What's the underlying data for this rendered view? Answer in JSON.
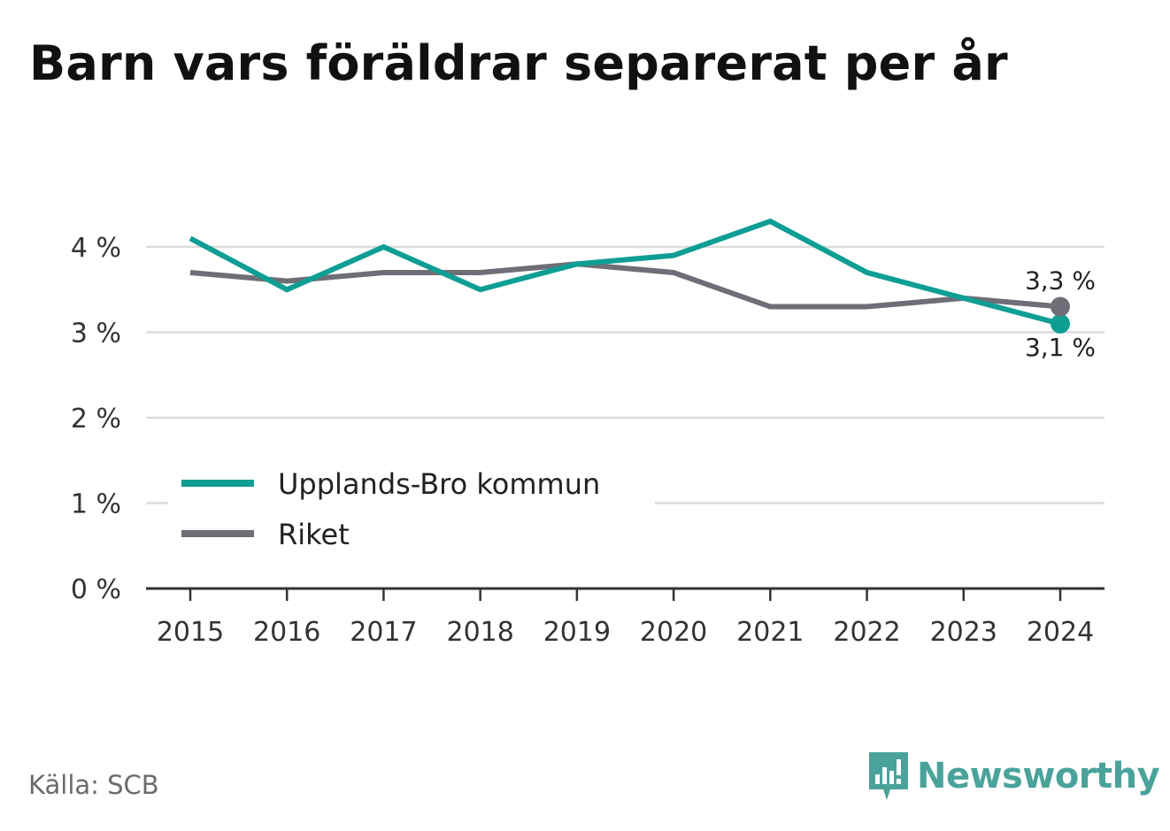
{
  "title": "Barn vars föräldrar separerat per år",
  "source": "Källa: SCB",
  "brand": {
    "name": "Newsworthy",
    "icon": "newsworthy-logo-icon",
    "color": "#4aa39a"
  },
  "chart_data": {
    "type": "line",
    "x": [
      "2015",
      "2016",
      "2017",
      "2018",
      "2019",
      "2020",
      "2021",
      "2022",
      "2023",
      "2024"
    ],
    "yticks": [
      "0 %",
      "1 %",
      "2 %",
      "3 %",
      "4 %"
    ],
    "ylim": [
      0,
      4.5
    ],
    "grid": true,
    "legend_position": "bottom-left",
    "series": [
      {
        "name": "Upplands-Bro kommun",
        "color": "#0f9e94",
        "values": [
          4.1,
          3.5,
          4.0,
          3.5,
          3.8,
          3.9,
          4.3,
          3.7,
          3.4,
          3.1
        ],
        "end_label": "3,1 %"
      },
      {
        "name": "Riket",
        "color": "#6f6e76",
        "values": [
          3.7,
          3.6,
          3.7,
          3.7,
          3.8,
          3.7,
          3.3,
          3.3,
          3.4,
          3.3
        ],
        "end_label": "3,3 %"
      }
    ]
  }
}
